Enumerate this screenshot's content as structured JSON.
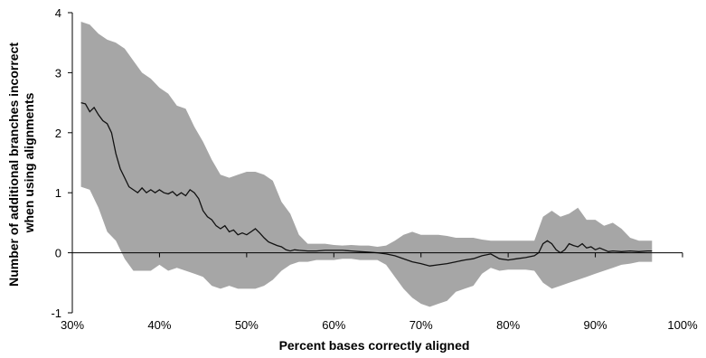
{
  "chart_data": {
    "type": "area",
    "title": "",
    "xlabel": "Percent bases correctly aligned",
    "ylabel_line1": "Number of additional branches incorrect",
    "ylabel_line2": "when using alignments",
    "xlim": [
      30,
      100
    ],
    "ylim": [
      -1,
      4
    ],
    "xticks": [
      30,
      40,
      50,
      60,
      70,
      80,
      90,
      100
    ],
    "xtick_labels": [
      "30%",
      "40%",
      "50%",
      "60%",
      "70%",
      "80%",
      "90%",
      "100%"
    ],
    "yticks": [
      -1,
      0,
      1,
      2,
      3,
      4
    ],
    "ytick_labels": [
      "-1",
      "0",
      "1",
      "2",
      "3",
      "4"
    ],
    "grid": false,
    "colors": {
      "band": "#a6a6a6",
      "line": "#111111"
    },
    "series": [
      {
        "role": "mean",
        "points": [
          [
            31.0,
            2.5
          ],
          [
            31.5,
            2.48
          ],
          [
            32.0,
            2.35
          ],
          [
            32.5,
            2.42
          ],
          [
            33.0,
            2.3
          ],
          [
            33.5,
            2.2
          ],
          [
            34.0,
            2.15
          ],
          [
            34.5,
            2.0
          ],
          [
            35.0,
            1.65
          ],
          [
            35.5,
            1.4
          ],
          [
            36.0,
            1.25
          ],
          [
            36.5,
            1.1
          ],
          [
            37.0,
            1.05
          ],
          [
            37.5,
            1.0
          ],
          [
            38.0,
            1.08
          ],
          [
            38.5,
            1.0
          ],
          [
            39.0,
            1.05
          ],
          [
            39.5,
            1.0
          ],
          [
            40.0,
            1.05
          ],
          [
            40.5,
            1.0
          ],
          [
            41.0,
            0.98
          ],
          [
            41.5,
            1.02
          ],
          [
            42.0,
            0.95
          ],
          [
            42.5,
            1.0
          ],
          [
            43.0,
            0.95
          ],
          [
            43.5,
            1.05
          ],
          [
            44.0,
            1.0
          ],
          [
            44.5,
            0.9
          ],
          [
            45.0,
            0.7
          ],
          [
            45.5,
            0.6
          ],
          [
            46.0,
            0.55
          ],
          [
            46.5,
            0.45
          ],
          [
            47.0,
            0.4
          ],
          [
            47.5,
            0.45
          ],
          [
            48.0,
            0.35
          ],
          [
            48.5,
            0.38
          ],
          [
            49.0,
            0.3
          ],
          [
            49.5,
            0.33
          ],
          [
            50.0,
            0.3
          ],
          [
            50.5,
            0.35
          ],
          [
            51.0,
            0.4
          ],
          [
            51.5,
            0.33
          ],
          [
            52.0,
            0.25
          ],
          [
            52.5,
            0.18
          ],
          [
            53.0,
            0.15
          ],
          [
            53.5,
            0.12
          ],
          [
            54.0,
            0.1
          ],
          [
            54.5,
            0.05
          ],
          [
            55.0,
            0.03
          ],
          [
            55.5,
            0.05
          ],
          [
            56.0,
            0.04
          ],
          [
            57.0,
            0.03
          ],
          [
            58.0,
            0.03
          ],
          [
            59.0,
            0.04
          ],
          [
            60.0,
            0.04
          ],
          [
            61.0,
            0.04
          ],
          [
            62.0,
            0.03
          ],
          [
            63.0,
            0.02
          ],
          [
            64.0,
            0.01
          ],
          [
            65.0,
            0.0
          ],
          [
            66.0,
            -0.02
          ],
          [
            67.0,
            -0.05
          ],
          [
            68.0,
            -0.1
          ],
          [
            69.0,
            -0.15
          ],
          [
            70.0,
            -0.18
          ],
          [
            71.0,
            -0.22
          ],
          [
            72.0,
            -0.2
          ],
          [
            73.0,
            -0.18
          ],
          [
            74.0,
            -0.15
          ],
          [
            75.0,
            -0.12
          ],
          [
            76.0,
            -0.1
          ],
          [
            77.0,
            -0.05
          ],
          [
            78.0,
            -0.02
          ],
          [
            79.0,
            -0.1
          ],
          [
            80.0,
            -0.12
          ],
          [
            81.0,
            -0.1
          ],
          [
            82.0,
            -0.08
          ],
          [
            83.0,
            -0.05
          ],
          [
            83.5,
            0.0
          ],
          [
            84.0,
            0.15
          ],
          [
            84.5,
            0.2
          ],
          [
            85.0,
            0.15
          ],
          [
            85.5,
            0.05
          ],
          [
            86.0,
            0.0
          ],
          [
            86.5,
            0.05
          ],
          [
            87.0,
            0.15
          ],
          [
            87.5,
            0.12
          ],
          [
            88.0,
            0.1
          ],
          [
            88.5,
            0.15
          ],
          [
            89.0,
            0.08
          ],
          [
            89.5,
            0.1
          ],
          [
            90.0,
            0.05
          ],
          [
            90.5,
            0.08
          ],
          [
            91.0,
            0.05
          ],
          [
            91.5,
            0.02
          ],
          [
            92.0,
            0.03
          ],
          [
            93.0,
            0.02
          ],
          [
            94.0,
            0.03
          ],
          [
            95.0,
            0.02
          ],
          [
            96.0,
            0.03
          ],
          [
            96.5,
            0.03
          ]
        ]
      },
      {
        "role": "band-upper",
        "points": [
          [
            31.0,
            3.85
          ],
          [
            32.0,
            3.8
          ],
          [
            33.0,
            3.65
          ],
          [
            34.0,
            3.55
          ],
          [
            35.0,
            3.5
          ],
          [
            36.0,
            3.4
          ],
          [
            37.0,
            3.2
          ],
          [
            38.0,
            3.0
          ],
          [
            39.0,
            2.9
          ],
          [
            40.0,
            2.75
          ],
          [
            41.0,
            2.65
          ],
          [
            42.0,
            2.45
          ],
          [
            43.0,
            2.4
          ],
          [
            44.0,
            2.1
          ],
          [
            45.0,
            1.85
          ],
          [
            46.0,
            1.55
          ],
          [
            47.0,
            1.3
          ],
          [
            48.0,
            1.25
          ],
          [
            49.0,
            1.3
          ],
          [
            50.0,
            1.35
          ],
          [
            51.0,
            1.35
          ],
          [
            52.0,
            1.3
          ],
          [
            53.0,
            1.2
          ],
          [
            54.0,
            0.85
          ],
          [
            55.0,
            0.65
          ],
          [
            56.0,
            0.3
          ],
          [
            57.0,
            0.15
          ],
          [
            58.0,
            0.15
          ],
          [
            59.0,
            0.15
          ],
          [
            60.0,
            0.13
          ],
          [
            61.0,
            0.12
          ],
          [
            62.0,
            0.13
          ],
          [
            63.0,
            0.12
          ],
          [
            64.0,
            0.12
          ],
          [
            65.0,
            0.1
          ],
          [
            66.0,
            0.12
          ],
          [
            67.0,
            0.2
          ],
          [
            68.0,
            0.3
          ],
          [
            69.0,
            0.35
          ],
          [
            70.0,
            0.3
          ],
          [
            71.0,
            0.3
          ],
          [
            72.0,
            0.3
          ],
          [
            73.0,
            0.28
          ],
          [
            74.0,
            0.25
          ],
          [
            75.0,
            0.25
          ],
          [
            76.0,
            0.25
          ],
          [
            77.0,
            0.22
          ],
          [
            78.0,
            0.2
          ],
          [
            79.0,
            0.2
          ],
          [
            80.0,
            0.2
          ],
          [
            81.0,
            0.2
          ],
          [
            82.0,
            0.2
          ],
          [
            83.0,
            0.2
          ],
          [
            84.0,
            0.6
          ],
          [
            85.0,
            0.7
          ],
          [
            86.0,
            0.6
          ],
          [
            87.0,
            0.65
          ],
          [
            88.0,
            0.75
          ],
          [
            89.0,
            0.55
          ],
          [
            90.0,
            0.55
          ],
          [
            91.0,
            0.45
          ],
          [
            92.0,
            0.5
          ],
          [
            93.0,
            0.4
          ],
          [
            94.0,
            0.25
          ],
          [
            95.0,
            0.2
          ],
          [
            96.5,
            0.2
          ]
        ]
      },
      {
        "role": "band-lower",
        "points": [
          [
            31.0,
            1.1
          ],
          [
            32.0,
            1.05
          ],
          [
            33.0,
            0.75
          ],
          [
            34.0,
            0.35
          ],
          [
            35.0,
            0.2
          ],
          [
            36.0,
            -0.1
          ],
          [
            37.0,
            -0.3
          ],
          [
            38.0,
            -0.3
          ],
          [
            39.0,
            -0.3
          ],
          [
            40.0,
            -0.2
          ],
          [
            41.0,
            -0.3
          ],
          [
            42.0,
            -0.25
          ],
          [
            43.0,
            -0.3
          ],
          [
            44.0,
            -0.35
          ],
          [
            45.0,
            -0.4
          ],
          [
            46.0,
            -0.55
          ],
          [
            47.0,
            -0.6
          ],
          [
            48.0,
            -0.55
          ],
          [
            49.0,
            -0.6
          ],
          [
            50.0,
            -0.6
          ],
          [
            51.0,
            -0.6
          ],
          [
            52.0,
            -0.55
          ],
          [
            53.0,
            -0.45
          ],
          [
            54.0,
            -0.3
          ],
          [
            55.0,
            -0.2
          ],
          [
            56.0,
            -0.15
          ],
          [
            57.0,
            -0.15
          ],
          [
            58.0,
            -0.12
          ],
          [
            59.0,
            -0.12
          ],
          [
            60.0,
            -0.12
          ],
          [
            61.0,
            -0.1
          ],
          [
            62.0,
            -0.1
          ],
          [
            63.0,
            -0.12
          ],
          [
            64.0,
            -0.12
          ],
          [
            65.0,
            -0.12
          ],
          [
            66.0,
            -0.2
          ],
          [
            67.0,
            -0.4
          ],
          [
            68.0,
            -0.6
          ],
          [
            69.0,
            -0.75
          ],
          [
            70.0,
            -0.85
          ],
          [
            71.0,
            -0.9
          ],
          [
            72.0,
            -0.85
          ],
          [
            73.0,
            -0.8
          ],
          [
            74.0,
            -0.65
          ],
          [
            75.0,
            -0.6
          ],
          [
            76.0,
            -0.55
          ],
          [
            77.0,
            -0.35
          ],
          [
            78.0,
            -0.25
          ],
          [
            79.0,
            -0.3
          ],
          [
            80.0,
            -0.28
          ],
          [
            81.0,
            -0.28
          ],
          [
            82.0,
            -0.28
          ],
          [
            83.0,
            -0.3
          ],
          [
            84.0,
            -0.5
          ],
          [
            85.0,
            -0.6
          ],
          [
            86.0,
            -0.55
          ],
          [
            87.0,
            -0.5
          ],
          [
            88.0,
            -0.45
          ],
          [
            89.0,
            -0.4
          ],
          [
            90.0,
            -0.35
          ],
          [
            91.0,
            -0.3
          ],
          [
            92.0,
            -0.25
          ],
          [
            93.0,
            -0.2
          ],
          [
            94.0,
            -0.18
          ],
          [
            95.0,
            -0.15
          ],
          [
            96.5,
            -0.15
          ]
        ]
      }
    ]
  }
}
